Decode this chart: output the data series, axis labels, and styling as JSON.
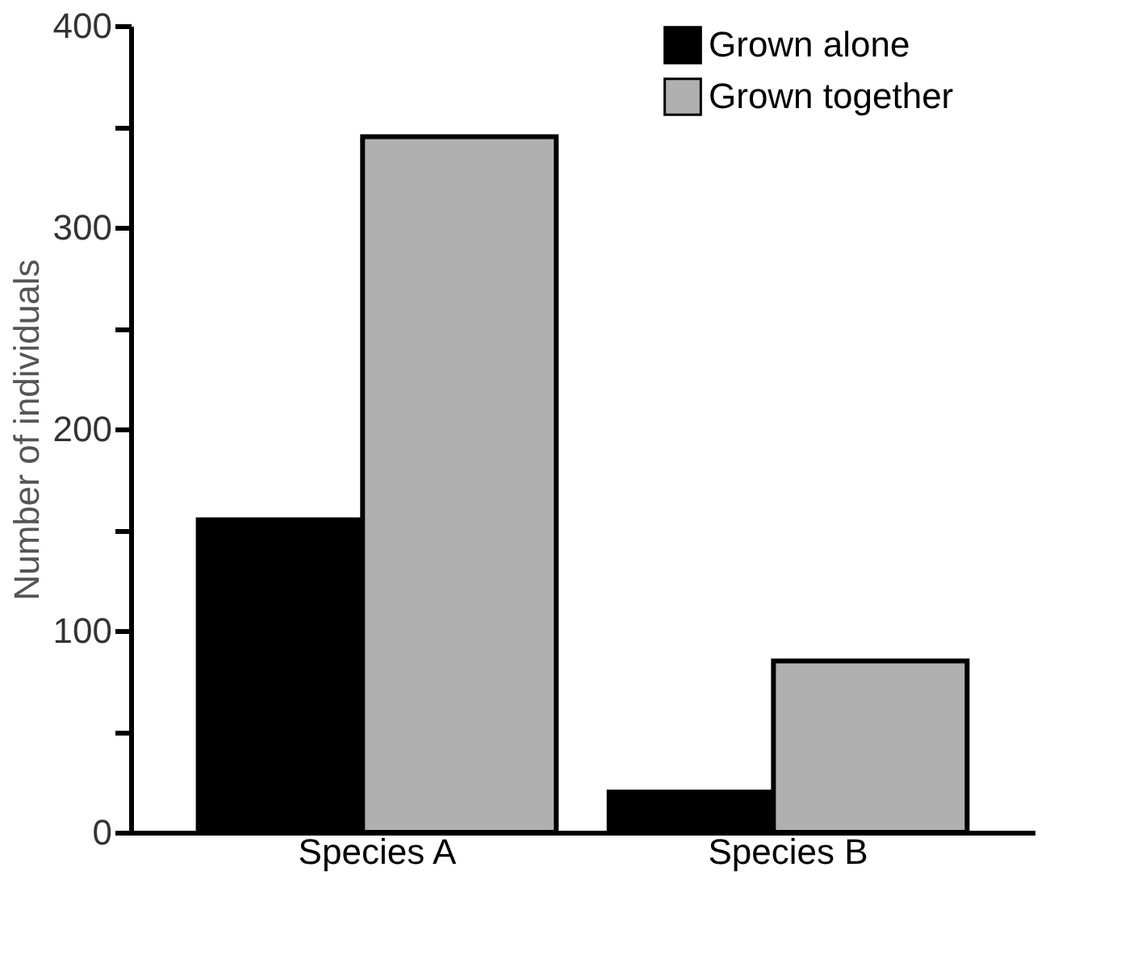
{
  "chart_data": {
    "type": "bar",
    "ylabel": "Number of individuals",
    "categories": [
      "Species A",
      "Species B"
    ],
    "series": [
      {
        "name": "Grown alone",
        "color": "#000000",
        "values": [
          155,
          20
        ]
      },
      {
        "name": "Grown together",
        "color": "#b0b0b0",
        "values": [
          345,
          85
        ]
      }
    ],
    "ylim": [
      0,
      400
    ],
    "yticks": [
      0,
      {
        "value": 50,
        "label": null
      },
      100,
      {
        "value": 150,
        "label": null
      },
      200,
      {
        "value": 250,
        "label": null
      },
      300,
      {
        "value": 350,
        "label": null
      },
      400
    ],
    "grid": false,
    "legend": "right"
  }
}
